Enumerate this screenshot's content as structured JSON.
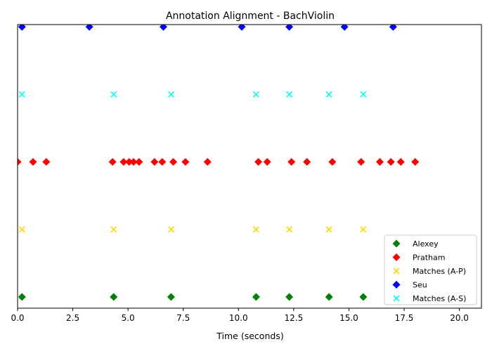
{
  "chart_data": {
    "type": "scatter",
    "title": "Annotation Alignment - BachViolin",
    "xlabel": "Time (seconds)",
    "ylabel": "",
    "xlim": [
      0,
      21
    ],
    "ylim": [
      0,
      4.2
    ],
    "x_ticks": [
      0,
      2.5,
      5,
      7.5,
      10,
      12.5,
      15,
      17.5,
      20
    ],
    "x_tick_labels": [
      "0.0",
      "2.5",
      "5.0",
      "7.5",
      "10.0",
      "12.5",
      "15.0",
      "17.5",
      "20.0"
    ],
    "grid": false,
    "legend_position": "bottom-right",
    "series": [
      {
        "name": "Alexey",
        "marker": "diamond",
        "color": "#008000",
        "y": 0,
        "x": [
          0.2,
          4.35,
          6.95,
          10.8,
          12.3,
          14.1,
          15.65
        ]
      },
      {
        "name": "Pratham",
        "marker": "diamond",
        "color": "#ff0000",
        "y": 2,
        "x": [
          0.0,
          0.7,
          1.3,
          4.3,
          4.8,
          5.05,
          5.25,
          5.5,
          6.2,
          6.55,
          7.05,
          7.6,
          8.6,
          10.9,
          11.3,
          12.4,
          13.1,
          14.25,
          15.55,
          16.4,
          16.9,
          17.35,
          18.0
        ]
      },
      {
        "name": "Matches (A-P)",
        "marker": "x",
        "color": "#ffd700",
        "y": 1,
        "x": [
          0.2,
          4.35,
          6.95,
          10.8,
          12.3,
          14.1,
          15.65
        ]
      },
      {
        "name": "Seu",
        "marker": "diamond",
        "color": "#0000ff",
        "y": 4,
        "x": [
          0.2,
          3.25,
          6.6,
          10.15,
          12.3,
          14.8,
          17.0
        ]
      },
      {
        "name": "Matches (A-S)",
        "marker": "x",
        "color": "#00ffff",
        "y": 3,
        "x": [
          0.2,
          4.35,
          6.95,
          10.8,
          12.3,
          14.1,
          15.65
        ]
      }
    ]
  }
}
